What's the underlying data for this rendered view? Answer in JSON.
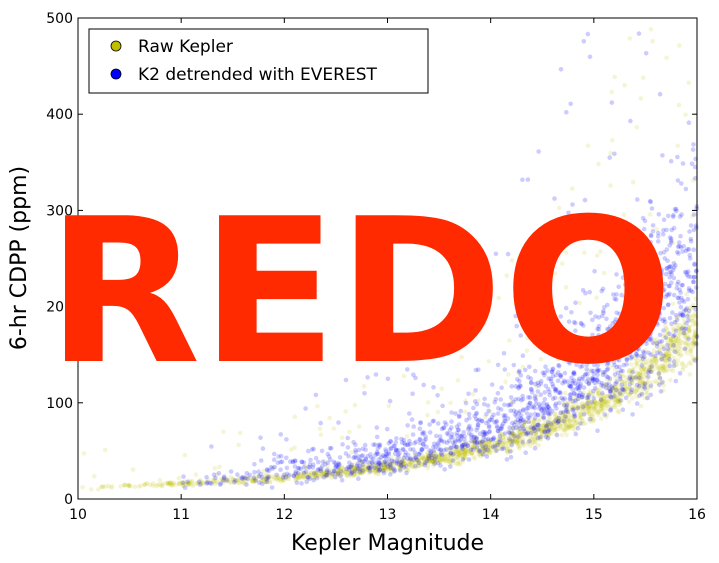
{
  "chart_data": {
    "type": "scatter",
    "xlabel": "Kepler Magnitude",
    "ylabel": "6-hr CDPP (ppm)",
    "xlim": [
      10,
      16
    ],
    "ylim": [
      0,
      500
    ],
    "x_ticks": [
      10,
      11,
      12,
      13,
      14,
      15,
      16
    ],
    "y_ticks": [
      0,
      100,
      200,
      300,
      400,
      500
    ],
    "grid": false,
    "legend_position": "top-left",
    "series": [
      {
        "name": "Raw Kepler",
        "color": "#bfbf00",
        "trend_points": [
          [
            10.0,
            12
          ],
          [
            11.0,
            16
          ],
          [
            12.0,
            22
          ],
          [
            13.0,
            33
          ],
          [
            13.5,
            42
          ],
          [
            14.0,
            55
          ],
          [
            14.5,
            72
          ],
          [
            15.0,
            97
          ],
          [
            15.5,
            130
          ],
          [
            16.0,
            175
          ]
        ]
      },
      {
        "name": "K2 detrended with EVEREST",
        "color": "#0000ff",
        "trend_points": [
          [
            11.0,
            18
          ],
          [
            11.5,
            22
          ],
          [
            12.0,
            28
          ],
          [
            12.5,
            34
          ],
          [
            13.0,
            42
          ],
          [
            13.5,
            55
          ],
          [
            14.0,
            75
          ],
          [
            14.5,
            100
          ],
          [
            15.0,
            135
          ],
          [
            15.5,
            180
          ],
          [
            16.0,
            260
          ]
        ]
      }
    ]
  },
  "overlay_text": "REDO",
  "colors": {
    "overlay": "#ff2a00",
    "raw_marker": "#bfbf00",
    "everest_marker": "#0000ff"
  }
}
